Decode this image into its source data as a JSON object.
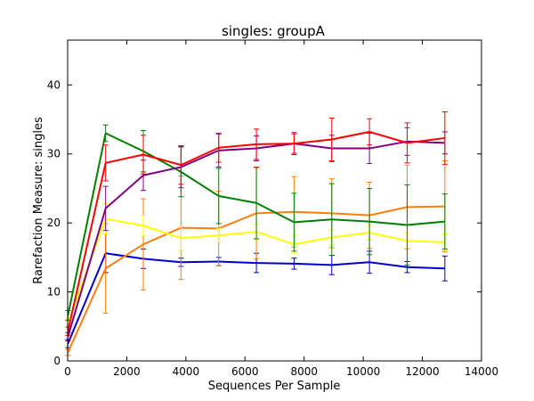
{
  "chart_data": {
    "type": "line",
    "title": "singles: groupA",
    "xlabel": "Sequences Per Sample",
    "ylabel": "Rarefaction Measure: singles",
    "xlim": [
      0,
      14000
    ],
    "ylim": [
      0,
      46.5
    ],
    "xticks": [
      0,
      2000,
      4000,
      6000,
      8000,
      10000,
      12000,
      14000
    ],
    "yticks": [
      0,
      10,
      20,
      30,
      40
    ],
    "x": [
      10,
      1285,
      2560,
      3835,
      5110,
      6385,
      7660,
      8935,
      10210,
      11485,
      12760
    ],
    "grid": false,
    "error_bars": true,
    "series": [
      {
        "color": "#0000cc",
        "values": [
          2.5,
          15.6,
          14.8,
          14.3,
          14.4,
          14.2,
          14.1,
          13.9,
          14.3,
          13.6,
          13.4
        ],
        "errors": [
          0.6,
          2.8,
          1.4,
          0.6,
          0.6,
          1.4,
          0.8,
          1.4,
          1.6,
          0.8,
          1.8
        ]
      },
      {
        "color": "#ff7f0e",
        "values": [
          1.2,
          13.4,
          16.9,
          19.3,
          19.2,
          21.4,
          21.6,
          21.4,
          21.1,
          22.3,
          22.4
        ],
        "errors": [
          0.4,
          6.5,
          6.6,
          7.5,
          5.4,
          6.6,
          5.1,
          5.0,
          4.8,
          6.1,
          6.6
        ]
      },
      {
        "color": "#ffff00",
        "values": [
          5.5,
          20.6,
          19.6,
          17.8,
          18.2,
          18.7,
          16.9,
          17.9,
          18.6,
          17.4,
          17.2
        ],
        "errors": [
          0.6,
          2.2,
          1.5,
          1.8,
          1.0,
          1.1,
          1.3,
          1.1,
          1.0,
          1.1,
          1.2
        ]
      },
      {
        "color": "#008000",
        "values": [
          6.6,
          33.0,
          30.4,
          27.4,
          23.9,
          22.9,
          20.1,
          20.5,
          20.2,
          19.7,
          20.2
        ],
        "errors": [
          0.7,
          1.2,
          3.0,
          3.6,
          4.0,
          5.2,
          4.2,
          5.2,
          4.8,
          5.8,
          4.0
        ]
      },
      {
        "color": "#800080",
        "values": [
          3.5,
          22.1,
          26.9,
          28.1,
          30.5,
          30.8,
          31.5,
          30.8,
          30.8,
          31.8,
          31.6
        ],
        "errors": [
          0.6,
          3.2,
          2.2,
          3.0,
          2.4,
          1.8,
          1.6,
          1.9,
          2.2,
          2.0,
          1.6
        ]
      },
      {
        "color": "#ff0000",
        "values": [
          4.3,
          28.7,
          29.9,
          28.4,
          30.9,
          31.4,
          31.5,
          32.1,
          33.2,
          31.6,
          32.3
        ],
        "errors": [
          0.6,
          2.6,
          2.8,
          2.8,
          2.1,
          2.2,
          1.4,
          3.1,
          1.9,
          2.9,
          3.8
        ]
      }
    ]
  }
}
